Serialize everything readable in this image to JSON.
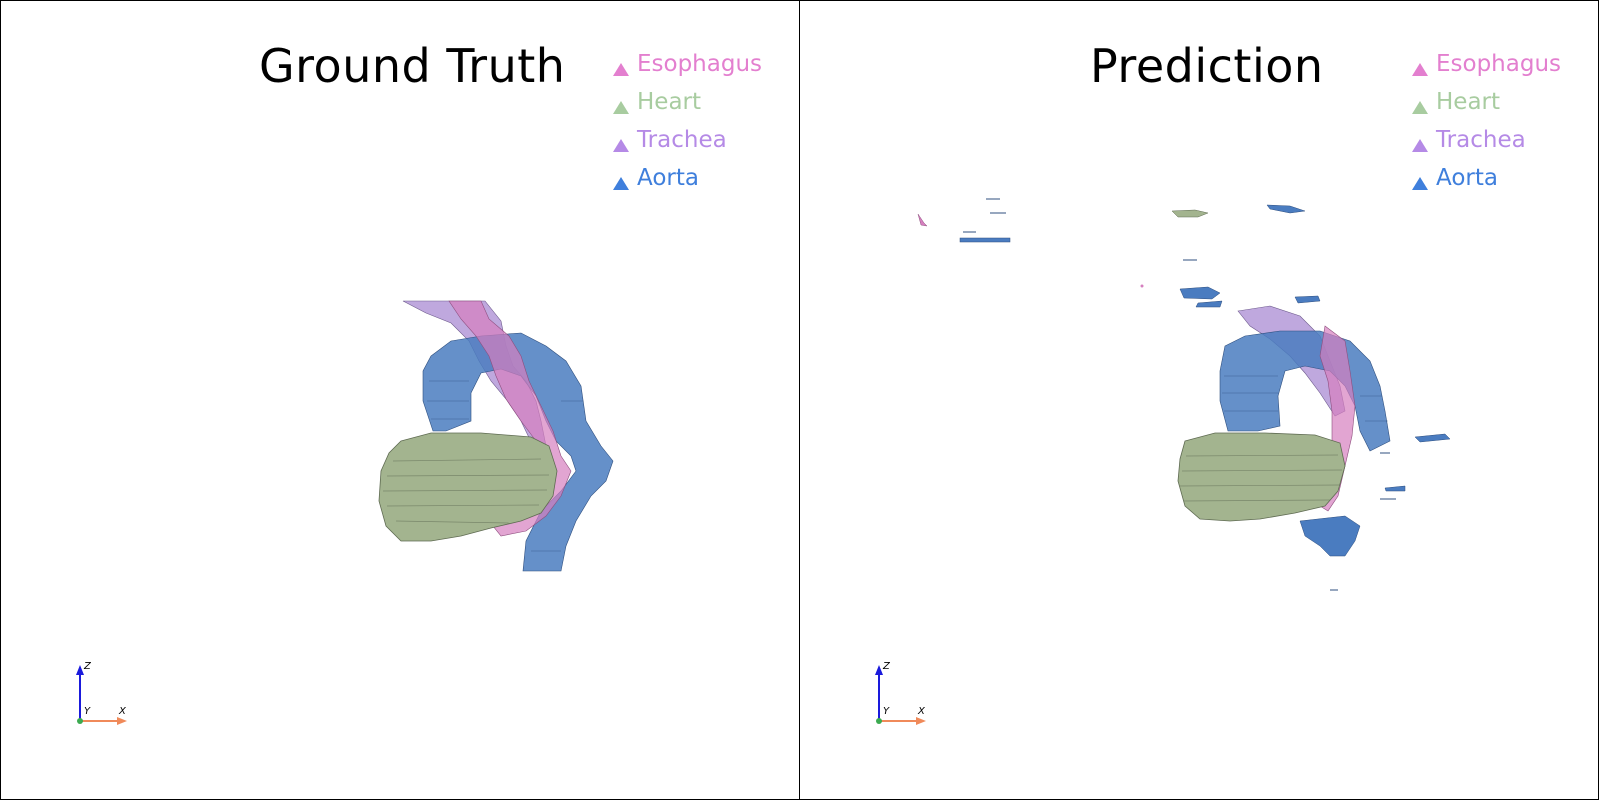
{
  "panels": [
    {
      "title": "Ground Truth",
      "legend": [
        {
          "label": "Esophagus",
          "color": "#e37fcf"
        },
        {
          "label": "Heart",
          "color": "#a8cca0"
        },
        {
          "label": "Trachea",
          "color": "#b58ae6"
        },
        {
          "label": "Aorta",
          "color": "#3f7fdc"
        }
      ],
      "axes": {
        "z": "Z",
        "y": "Y",
        "x": "X"
      }
    },
    {
      "title": "Prediction",
      "legend": [
        {
          "label": "Esophagus",
          "color": "#e37fcf"
        },
        {
          "label": "Heart",
          "color": "#a8cca0"
        },
        {
          "label": "Trachea",
          "color": "#b58ae6"
        },
        {
          "label": "Aorta",
          "color": "#3f7fdc"
        }
      ],
      "axes": {
        "z": "Z",
        "y": "Y",
        "x": "X"
      }
    }
  ],
  "colors": {
    "esophagus": "#d67fbf",
    "heart": "#a3b48f",
    "trachea": "#a98bd3",
    "aorta": "#4a7cc0",
    "axis_z": "#1a1adc",
    "axis_x": "#f08a5a",
    "axis_y": "#3caa50"
  }
}
